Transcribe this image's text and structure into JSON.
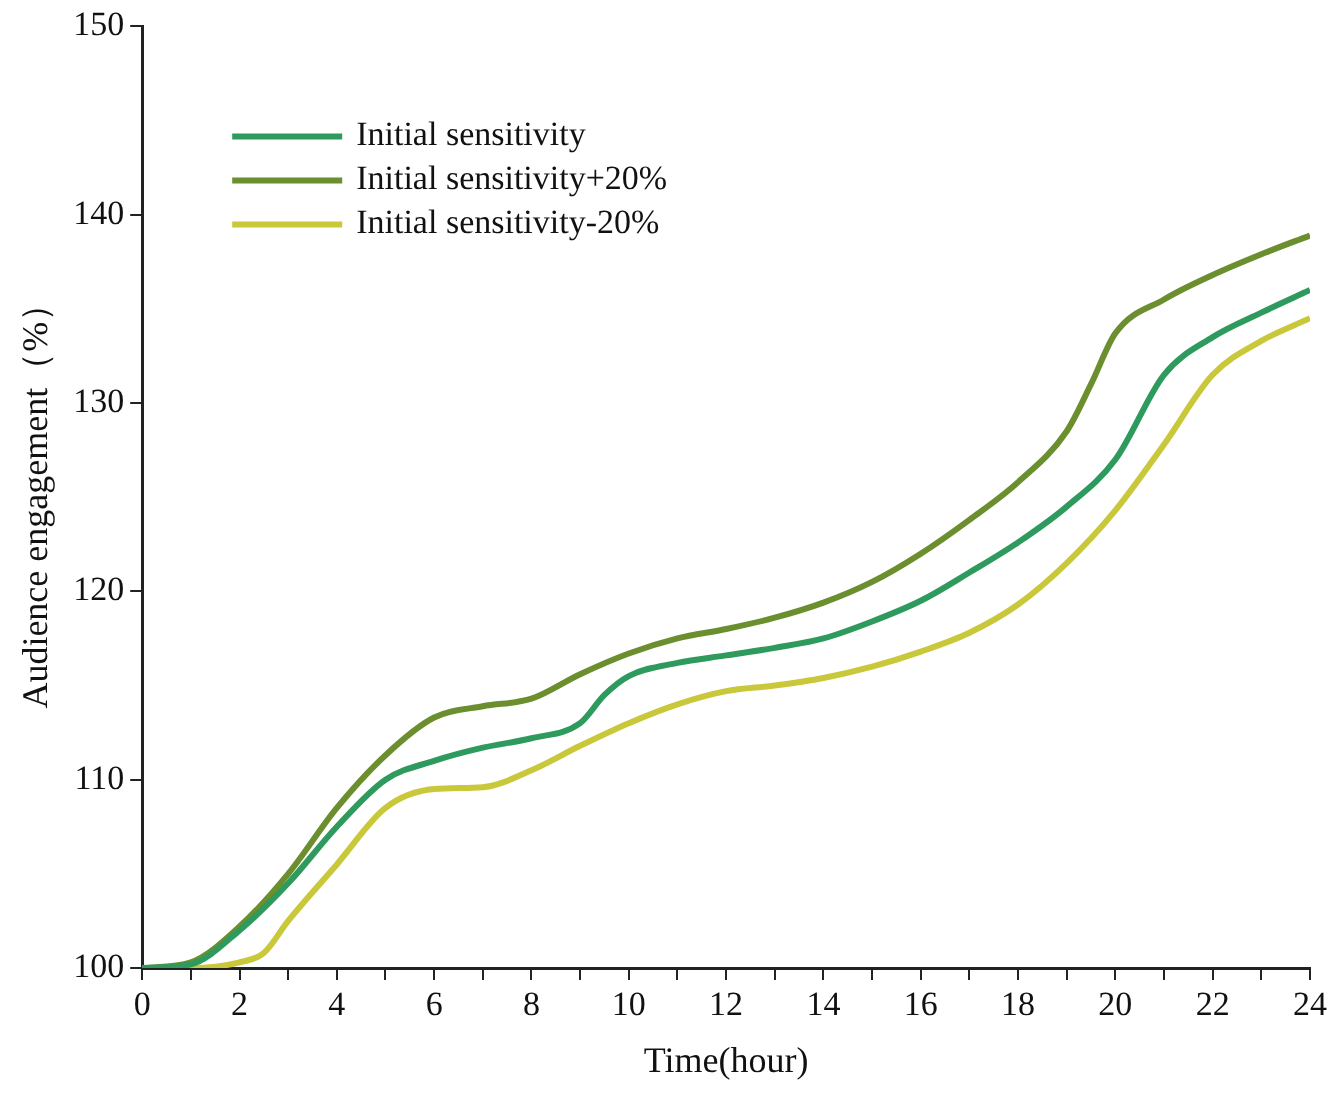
{
  "chart_data": {
    "type": "line",
    "xlabel": "Time(hour)",
    "ylabel": "Audience engagement（%）",
    "xlim": [
      0,
      24
    ],
    "ylim": [
      100,
      150
    ],
    "xticks": [
      0,
      {
        "value": 1,
        "label": null
      },
      2,
      {
        "value": 3,
        "label": null
      },
      4,
      {
        "value": 5,
        "label": null
      },
      6,
      {
        "value": 7,
        "label": null
      },
      8,
      {
        "value": 9,
        "label": null
      },
      10,
      {
        "value": 11,
        "label": null
      },
      12,
      {
        "value": 13,
        "label": null
      },
      14,
      {
        "value": 15,
        "label": null
      },
      16,
      {
        "value": 17,
        "label": null
      },
      18,
      {
        "value": 19,
        "label": null
      },
      20,
      {
        "value": 21,
        "label": null
      },
      22,
      {
        "value": 23,
        "label": null
      },
      24
    ],
    "yticks": [
      100,
      110,
      120,
      130,
      140,
      150
    ],
    "grid": false,
    "legend": "top left",
    "marker": "none",
    "line_style": "solid",
    "series": [
      {
        "name": "Initial sensitivity",
        "color": "#2e9a5e",
        "x": [
          0,
          1,
          2,
          3,
          4,
          5,
          6,
          7,
          8,
          9,
          9.5,
          10,
          11,
          12,
          13,
          14,
          15,
          16,
          17,
          18,
          19,
          20,
          21,
          22,
          23,
          24
        ],
        "values": [
          100,
          100.2,
          102,
          104.5,
          107.5,
          110,
          111,
          111.7,
          112.2,
          113,
          114.5,
          115.5,
          116.2,
          116.6,
          117,
          117.5,
          118.4,
          119.5,
          121,
          122.6,
          124.5,
          127,
          131.5,
          133.5,
          134.8,
          136
        ]
      },
      {
        "name": "Initial sensitivity+20%",
        "color": "#6b8e2e",
        "x": [
          0,
          1,
          2,
          3,
          4,
          5,
          6,
          7,
          8,
          9,
          10,
          11,
          12,
          13,
          14,
          15,
          16,
          17,
          18,
          19,
          19.5,
          20,
          21,
          22,
          23,
          24
        ],
        "values": [
          100,
          100.3,
          102.2,
          105,
          108.5,
          111.3,
          113.3,
          113.9,
          114.3,
          115.6,
          116.7,
          117.5,
          118,
          118.6,
          119.4,
          120.5,
          122,
          123.8,
          125.8,
          128.5,
          131,
          133.7,
          135.5,
          136.8,
          137.9,
          138.9
        ]
      },
      {
        "name": "Initial sensitivity-20%",
        "color": "#c8c83a",
        "x": [
          0,
          1,
          2,
          2.5,
          3,
          4,
          5,
          6,
          7,
          8,
          9,
          10,
          11,
          12,
          13,
          14,
          15,
          16,
          17,
          18,
          19,
          20,
          21,
          22,
          23,
          24
        ],
        "values": [
          100,
          100,
          100.3,
          100.8,
          102.5,
          105.5,
          108.5,
          109.5,
          109.6,
          110.5,
          111.8,
          113,
          114,
          114.7,
          115,
          115.4,
          116,
          116.8,
          117.8,
          119.3,
          121.5,
          124.3,
          127.8,
          131.5,
          133.3,
          134.5
        ]
      }
    ]
  }
}
